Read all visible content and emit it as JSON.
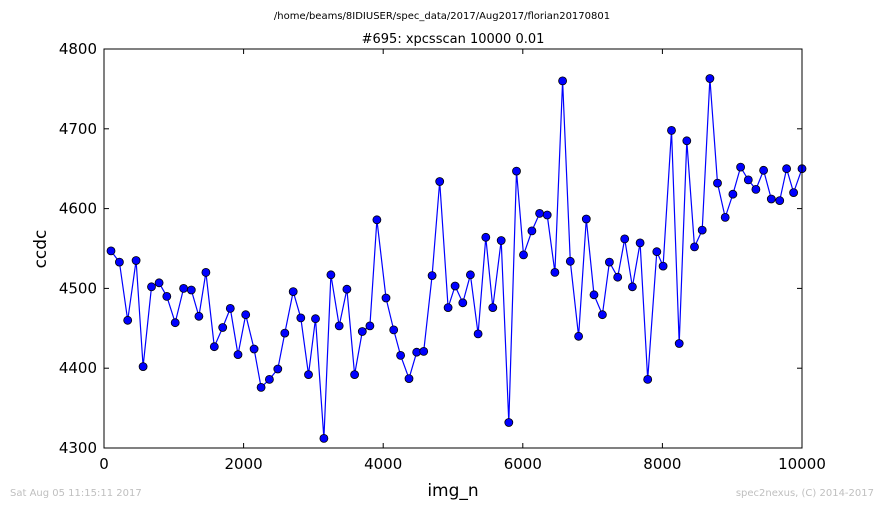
{
  "figure": {
    "path_title": "/home/beams/8IDIUSER/spec_data/2017/Aug2017/florian20170801",
    "footer_left": "Sat Aug 05 11:15:11 2017",
    "footer_right": "spec2nexus, (C) 2014-2017"
  },
  "colors": {
    "line": "#0000ff",
    "marker_fill": "#0000ff",
    "marker_edge": "#000000",
    "axes": "#000000"
  },
  "chart_data": {
    "type": "line",
    "title": "#695: xpcsscan 10000 0.01",
    "xlabel": "img_n",
    "ylabel": "ccdc",
    "xlim": [
      0,
      10000
    ],
    "ylim": [
      4300,
      4800
    ],
    "xticks": [
      0,
      2000,
      4000,
      6000,
      8000,
      10000
    ],
    "yticks": [
      4300,
      4400,
      4500,
      4600,
      4700,
      4800
    ],
    "xtick_labels": [
      "0",
      "2000",
      "4000",
      "6000",
      "8000",
      "10000"
    ],
    "ytick_labels": [
      "4300",
      "4400",
      "4500",
      "4600",
      "4700",
      "4800"
    ],
    "grid": false,
    "series": [
      {
        "x": [
          100,
          220,
          340,
          460,
          560,
          680,
          790,
          900,
          1020,
          1140,
          1250,
          1360,
          1460,
          1580,
          1700,
          1810,
          1920,
          2030,
          2150,
          2250,
          2370,
          2490,
          2590,
          2710,
          2820,
          2930,
          3030,
          3150,
          3250,
          3370,
          3480,
          3590,
          3700,
          3810,
          3910,
          4040,
          4150,
          4250,
          4370,
          4480,
          4580,
          4700,
          4810,
          4930,
          5030,
          5140,
          5250,
          5360,
          5470,
          5570,
          5690,
          5800,
          5910,
          6010,
          6130,
          6240,
          6350,
          6460,
          6570,
          6680,
          6800,
          6910,
          7020,
          7140,
          7240,
          7360,
          7460,
          7570,
          7680,
          7790,
          7920,
          8010,
          8130,
          8240,
          8350,
          8460,
          8570,
          8680,
          8790,
          8900,
          9010,
          9120,
          9230,
          9340,
          9450,
          9560,
          9680,
          9780,
          9880,
          10000
        ],
        "values": [
          4547,
          4533,
          4460,
          4535,
          4402,
          4502,
          4507,
          4490,
          4457,
          4500,
          4498,
          4465,
          4520,
          4427,
          4451,
          4475,
          4417,
          4467,
          4424,
          4376,
          4386,
          4399,
          4444,
          4496,
          4463,
          4392,
          4462,
          4312,
          4517,
          4453,
          4499,
          4392,
          4446,
          4453,
          4586,
          4488,
          4448,
          4416,
          4387,
          4420,
          4421,
          4516,
          4634,
          4476,
          4503,
          4482,
          4517,
          4443,
          4564,
          4476,
          4560,
          4332,
          4647,
          4542,
          4572,
          4594,
          4592,
          4520,
          4760,
          4534,
          4440,
          4587,
          4492,
          4467,
          4533,
          4514,
          4562,
          4502,
          4557,
          4386,
          4546,
          4528,
          4698,
          4431,
          4685,
          4552,
          4573,
          4763,
          4632,
          4589,
          4618,
          4652,
          4636,
          4624,
          4648,
          4612,
          4610,
          4650,
          4620,
          4650
        ]
      }
    ]
  }
}
